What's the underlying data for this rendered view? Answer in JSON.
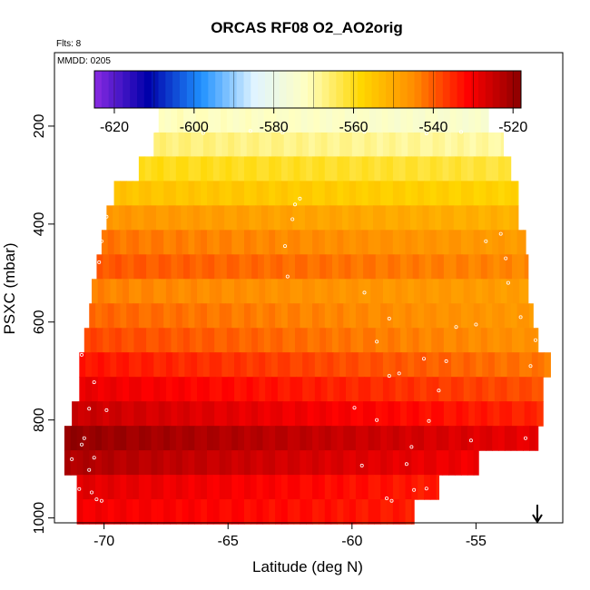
{
  "chart_data": {
    "type": "heatmap",
    "title": "ORCAS RF08 O2_AO2orig",
    "annotations": [
      "Flts: 8",
      "MMDD: 0205"
    ],
    "xlabel": "Latitude (deg N)",
    "ylabel": "PSXC (mbar)",
    "xlim": [
      -72,
      -51.5
    ],
    "ylim": [
      1010,
      50
    ],
    "x_ticks": [
      -70,
      -65,
      -60,
      -55
    ],
    "y_ticks": [
      200,
      400,
      600,
      800,
      1000
    ],
    "colorbar": {
      "range": [
        -625,
        -518
      ],
      "ticks": [
        -620,
        -600,
        -580,
        -560,
        -540,
        -520
      ],
      "colors": [
        "#8a2be2",
        "#0000aa",
        "#1e90ff",
        "#e0f4ff",
        "#ffffc0",
        "#ffd700",
        "#ff8c00",
        "#ff0000",
        "#8b0000"
      ]
    },
    "bands": [
      {
        "p": 187,
        "lat_min": -67.8,
        "lat_max": -54.5,
        "value": -573,
        "gradient": 3
      },
      {
        "p": 238,
        "lat_min": -68.0,
        "lat_max": -53.9,
        "value": -568,
        "gradient": 3
      },
      {
        "p": 287,
        "lat_min": -68.6,
        "lat_max": -53.6,
        "value": -561,
        "gradient": 3
      },
      {
        "p": 337,
        "lat_min": -69.6,
        "lat_max": -53.3,
        "value": -556,
        "gradient": 3
      },
      {
        "p": 387,
        "lat_min": -69.9,
        "lat_max": -53.3,
        "value": -549,
        "gradient": 5
      },
      {
        "p": 437,
        "lat_min": -70.1,
        "lat_max": -53.0,
        "value": -545,
        "gradient": 5
      },
      {
        "p": 487,
        "lat_min": -70.3,
        "lat_max": -52.9,
        "value": -542,
        "gradient": 5
      },
      {
        "p": 537,
        "lat_min": -70.5,
        "lat_max": -52.9,
        "value": -546,
        "gradient": 4
      },
      {
        "p": 587,
        "lat_min": -70.6,
        "lat_max": -52.7,
        "value": -544,
        "gradient": 6
      },
      {
        "p": 637,
        "lat_min": -70.8,
        "lat_max": -52.5,
        "value": -542,
        "gradient": 8
      },
      {
        "p": 687,
        "lat_min": -71.0,
        "lat_max": -52.0,
        "value": -538,
        "gradient": 10
      },
      {
        "p": 737,
        "lat_min": -71.0,
        "lat_max": -52.3,
        "value": -534,
        "gradient": 10
      },
      {
        "p": 787,
        "lat_min": -71.3,
        "lat_max": -52.3,
        "value": -530,
        "gradient": 10
      },
      {
        "p": 837,
        "lat_min": -71.6,
        "lat_max": -52.5,
        "value": -524,
        "gradient": 10
      },
      {
        "p": 887,
        "lat_min": -71.6,
        "lat_max": -54.9,
        "value": -526,
        "gradient": 8
      },
      {
        "p": 937,
        "lat_min": -71.1,
        "lat_max": -56.5,
        "value": -531,
        "gradient": 6
      },
      {
        "p": 987,
        "lat_min": -71.1,
        "lat_max": -57.5,
        "value": -532,
        "gradient": 4
      }
    ],
    "points": [
      [
        -68.2,
        192
      ],
      [
        -68.0,
        210
      ],
      [
        -55.6,
        212
      ],
      [
        -57.0,
        215
      ],
      [
        -59.5,
        212
      ],
      [
        -62.8,
        213
      ],
      [
        -66.0,
        214
      ],
      [
        -64.1,
        210
      ],
      [
        -62.1,
        348
      ],
      [
        -62.3,
        360
      ],
      [
        -62.4,
        390
      ],
      [
        -62.7,
        445
      ],
      [
        -62.6,
        507
      ],
      [
        -69.9,
        385
      ],
      [
        -70.1,
        435
      ],
      [
        -70.2,
        478
      ],
      [
        -54.6,
        435
      ],
      [
        -54.0,
        420
      ],
      [
        -53.8,
        470
      ],
      [
        -53.7,
        520
      ],
      [
        -59.5,
        540
      ],
      [
        -58.5,
        593
      ],
      [
        -55.8,
        610
      ],
      [
        -55.0,
        605
      ],
      [
        -53.2,
        590
      ],
      [
        -52.6,
        637
      ],
      [
        -52.8,
        690
      ],
      [
        -59.0,
        640
      ],
      [
        -56.2,
        680
      ],
      [
        -57.1,
        675
      ],
      [
        -58.1,
        705
      ],
      [
        -58.5,
        710
      ],
      [
        -56.5,
        740
      ],
      [
        -70.9,
        667
      ],
      [
        -70.4,
        723
      ],
      [
        -70.6,
        777
      ],
      [
        -69.9,
        780
      ],
      [
        -70.8,
        837
      ],
      [
        -70.9,
        850
      ],
      [
        -70.4,
        877
      ],
      [
        -70.6,
        902
      ],
      [
        -71.3,
        880
      ],
      [
        -71.0,
        941
      ],
      [
        -70.5,
        948
      ],
      [
        -70.3,
        962
      ],
      [
        -70.1,
        965
      ],
      [
        -59.9,
        775
      ],
      [
        -59.0,
        800
      ],
      [
        -56.9,
        802
      ],
      [
        -57.6,
        855
      ],
      [
        -55.2,
        842
      ],
      [
        -53.0,
        837
      ],
      [
        -59.6,
        893
      ],
      [
        -57.8,
        890
      ],
      [
        -58.4,
        965
      ],
      [
        -58.6,
        960
      ],
      [
        -57.5,
        943
      ],
      [
        -57.0,
        940
      ],
      [
        -57.2,
        970
      ]
    ]
  }
}
